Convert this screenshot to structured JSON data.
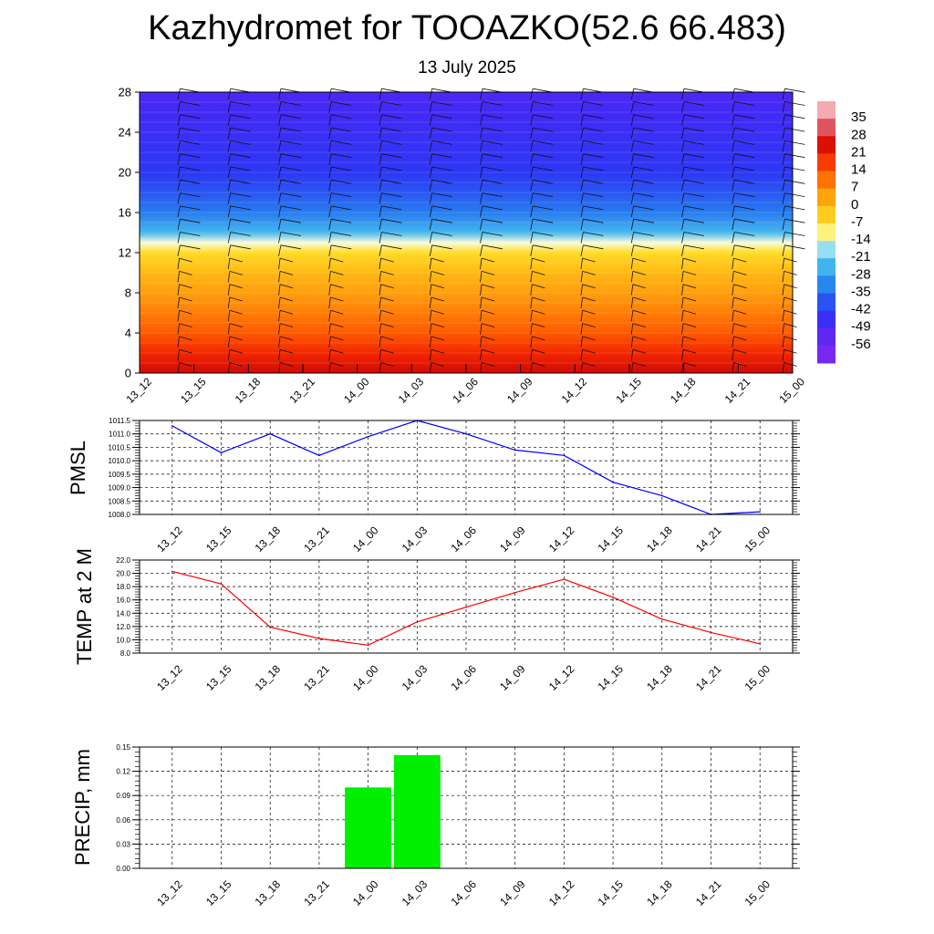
{
  "title": "Kazhydromet for TOOAZKO(52.6 66.483)",
  "subtitle": "13 July 2025",
  "chart_data": [
    {
      "type": "heatmap",
      "y_ticks": [
        "0",
        "4",
        "8",
        "12",
        "16",
        "20",
        "24",
        "28"
      ],
      "ylim": [
        0,
        28
      ],
      "x_tick_labels": [
        "13_12",
        "13_15",
        "13_18",
        "13_21",
        "14_00",
        "14_03",
        "14_06",
        "14_09",
        "14_12",
        "14_15",
        "14_18",
        "14_21",
        "15_00"
      ],
      "colorbar_labels": [
        "35",
        "28",
        "21",
        "14",
        "7",
        "0",
        "-7",
        "-14",
        "-21",
        "-28",
        "-35",
        "-42",
        "-49",
        "-56"
      ],
      "temperature_by_level": [
        {
          "level": 0,
          "value": 26
        },
        {
          "level": 2,
          "value": 20
        },
        {
          "level": 4,
          "value": 14
        },
        {
          "level": 6,
          "value": 9
        },
        {
          "level": 8,
          "value": 4
        },
        {
          "level": 10,
          "value": 0
        },
        {
          "level": 12,
          "value": -6
        },
        {
          "level": 13,
          "value": -14
        },
        {
          "level": 14,
          "value": -24
        },
        {
          "level": 16,
          "value": -33
        },
        {
          "level": 18,
          "value": -38
        },
        {
          "level": 20,
          "value": -42
        },
        {
          "level": 22,
          "value": -44
        },
        {
          "level": 24,
          "value": -46
        },
        {
          "level": 26,
          "value": -48
        },
        {
          "level": 28,
          "value": -50
        }
      ],
      "wind_barbs": true
    },
    {
      "type": "line",
      "ylabel": "PMSL",
      "x": [
        "13_12",
        "13_15",
        "13_18",
        "13_21",
        "14_00",
        "14_03",
        "14_06",
        "14_09",
        "14_12",
        "14_15",
        "14_18",
        "14_21",
        "15_00"
      ],
      "values": [
        1011.3,
        1010.3,
        1011.0,
        1010.2,
        1010.9,
        1011.5,
        1011.0,
        1010.4,
        1010.2,
        1009.2,
        1008.7,
        1008.0,
        1008.1
      ],
      "ylim": [
        1008.0,
        1011.5
      ],
      "y_ticks": [
        "1008.0",
        "1008.5",
        "1009.0",
        "1009.5",
        "1010.0",
        "1010.5",
        "1011.0",
        "1011.5"
      ],
      "color": "#0000ff",
      "grid": true
    },
    {
      "type": "line",
      "ylabel": "TEMP at 2 M",
      "x": [
        "13_12",
        "13_15",
        "13_18",
        "13_21",
        "14_00",
        "14_03",
        "14_06",
        "14_09",
        "14_12",
        "14_15",
        "14_18",
        "14_21",
        "15_00"
      ],
      "values": [
        20.3,
        18.4,
        11.9,
        10.2,
        9.2,
        12.7,
        14.9,
        17.1,
        19.1,
        16.4,
        13.1,
        11.1,
        9.4
      ],
      "ylim": [
        8.0,
        22.0
      ],
      "y_ticks": [
        "8.0",
        "10.0",
        "12.0",
        "14.0",
        "16.0",
        "18.0",
        "20.0",
        "22.0"
      ],
      "color": "#ff0000",
      "grid": true
    },
    {
      "type": "bar",
      "ylabel": "PRECIP, mm",
      "categories": [
        "13_12",
        "13_15",
        "13_18",
        "13_21",
        "14_00",
        "14_03",
        "14_06",
        "14_09",
        "14_12",
        "14_15",
        "14_18",
        "14_21",
        "15_00"
      ],
      "values": [
        0,
        0,
        0,
        0,
        0.1,
        0.14,
        0,
        0,
        0,
        0,
        0,
        0,
        0
      ],
      "ylim": [
        0,
        0.15
      ],
      "y_ticks": [
        "0.00",
        "0.03",
        "0.06",
        "0.09",
        "0.12",
        "0.15"
      ],
      "color": "#00ee00",
      "grid": true
    }
  ]
}
